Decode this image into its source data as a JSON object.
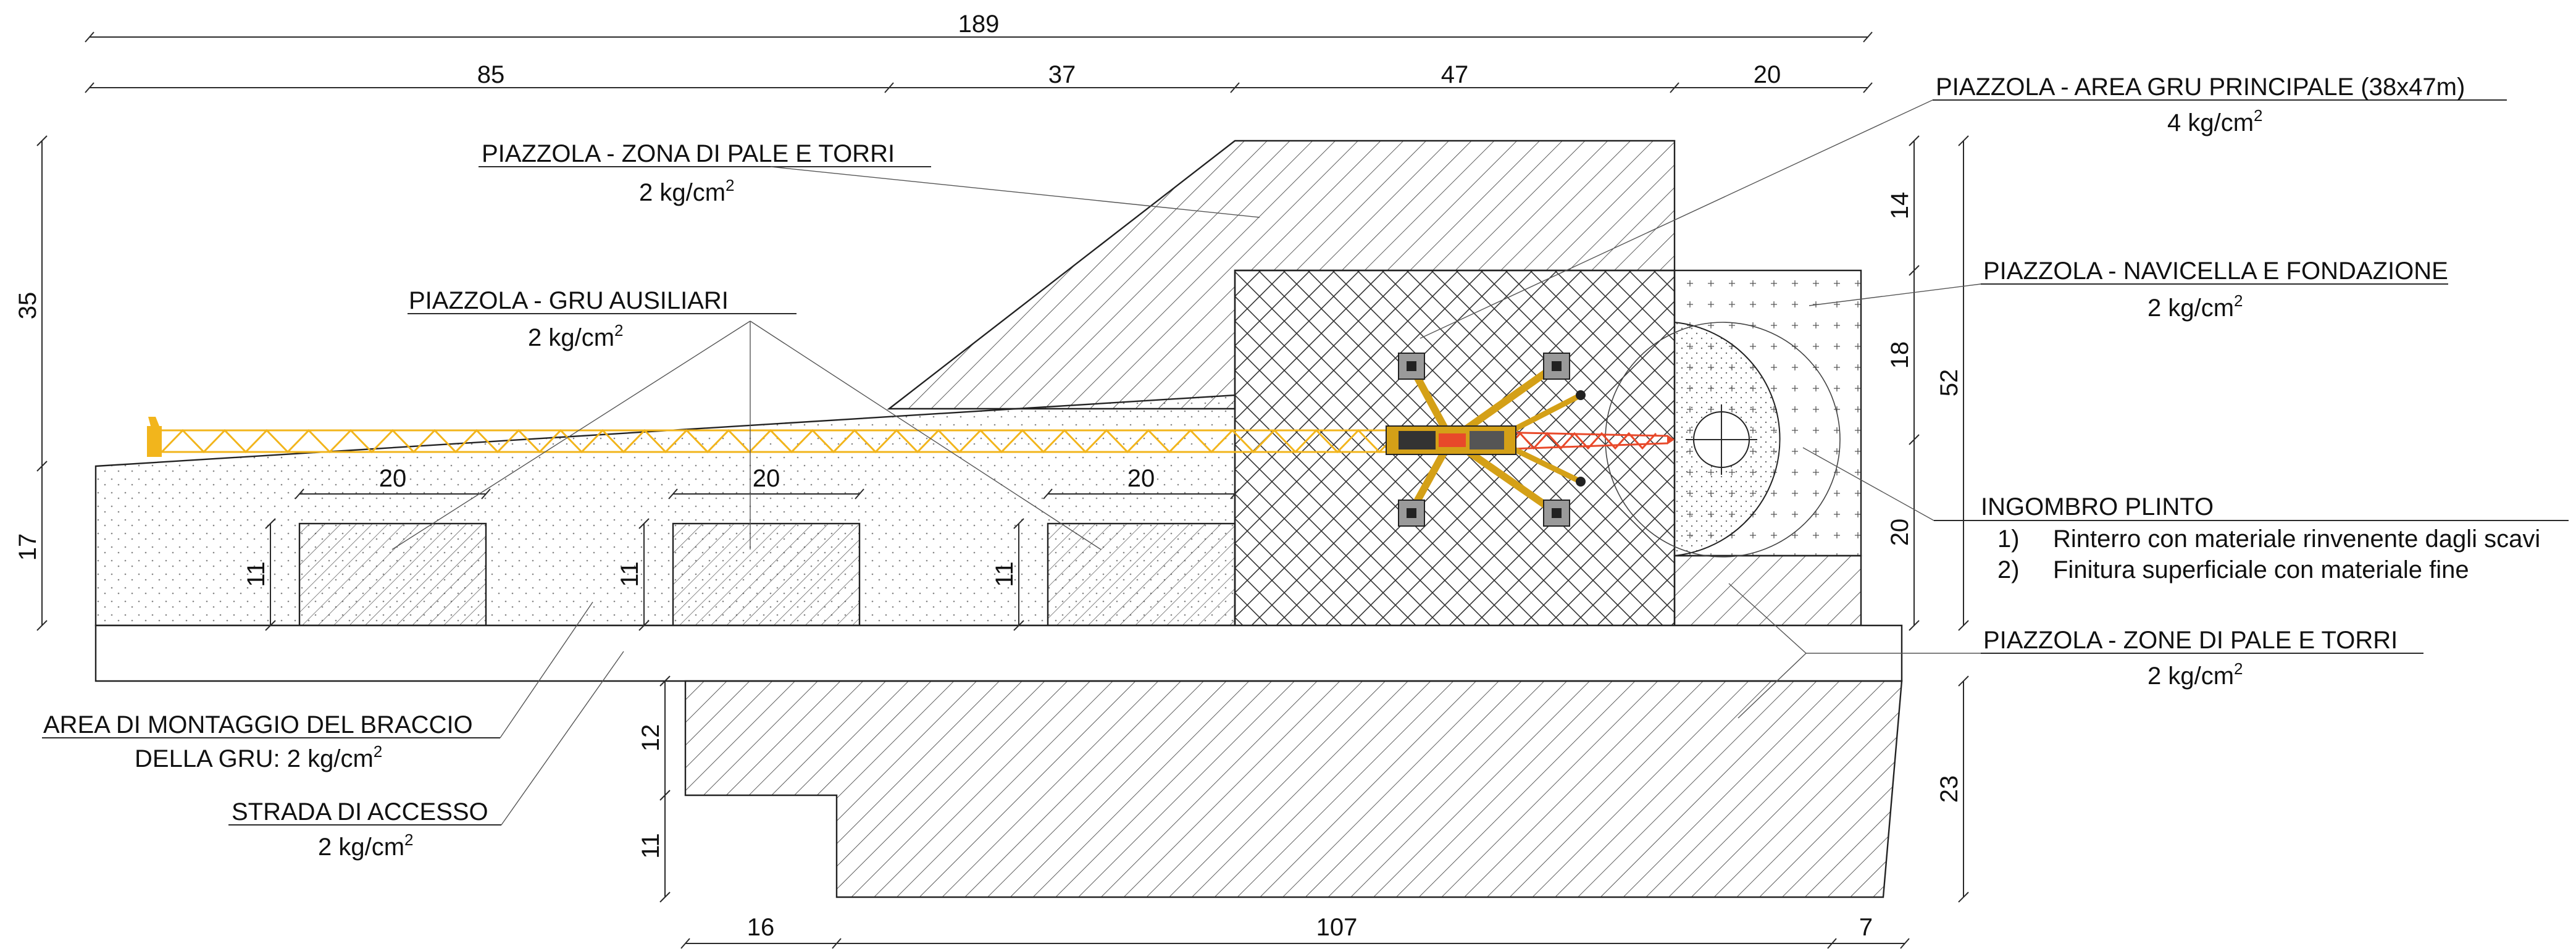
{
  "dimensions": {
    "total_width": "189",
    "seg_85": "85",
    "seg_37": "37",
    "seg_47": "47",
    "seg_20_top": "20",
    "left_35": "35",
    "left_17": "17",
    "pad_20_a": "20",
    "pad_20_b": "20",
    "pad_20_c": "20",
    "pad_11_a": "11",
    "pad_11_b": "11",
    "pad_11_c": "11",
    "right_14": "14",
    "right_18": "18",
    "right_20": "20",
    "right_52": "52",
    "right_23": "23",
    "road_12": "12",
    "road_11": "11",
    "bottom_16": "16",
    "bottom_107": "107",
    "bottom_7": "7"
  },
  "labels": {
    "zona_pale_torri": {
      "title": "PIAZZOLA - ZONA DI PALE E TORRI",
      "load": "2 kg/cm",
      "exp": "2"
    },
    "gru_ausiliari": {
      "title": "PIAZZOLA - GRU AUSILIARI",
      "load": "2 kg/cm",
      "exp": "2"
    },
    "area_gru_principale": {
      "title": "PIAZZOLA - AREA GRU PRINCIPALE (38x47m)",
      "load": "4 kg/cm",
      "exp": "2"
    },
    "navicella_fondazione": {
      "title": "PIAZZOLA - NAVICELLA E FONDAZIONE",
      "load": "2 kg/cm",
      "exp": "2"
    },
    "ingombro_plinto": {
      "title": "INGOMBRO PLINTO",
      "items": [
        {
          "num": "1)",
          "text": "Rinterro con materiale rinvenente dagli scavi"
        },
        {
          "num": "2)",
          "text": "Finitura superficiale con materiale fine"
        }
      ]
    },
    "zone_pale_torri": {
      "title": "PIAZZOLA - ZONE DI PALE E TORRI",
      "load": "2 kg/cm",
      "exp": "2"
    },
    "area_montaggio": {
      "line1": "AREA DI MONTAGGIO DEL BRACCIO",
      "line2": "DELLA GRU: 2 kg/cm",
      "exp": "2"
    },
    "strada_accesso": {
      "title": "STRADA DI ACCESSO",
      "load": "2 kg/cm",
      "exp": "2"
    }
  },
  "colors": {
    "line": "#2a2a2a",
    "boom_yellow": "#f2b51c",
    "boom_red": "#e8492a",
    "crane_body": "#d4a017",
    "outrigger_pad": "#9a9a9a"
  }
}
